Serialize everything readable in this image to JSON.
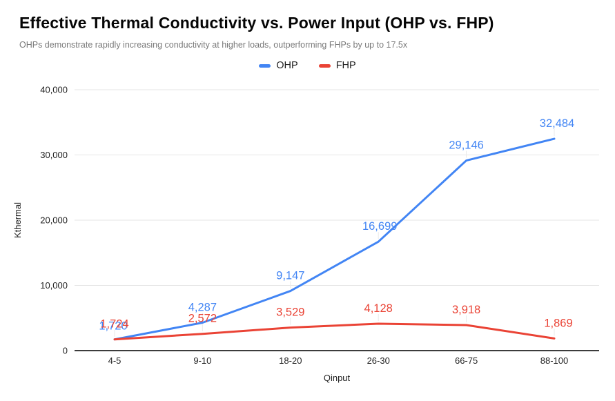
{
  "chart_data": {
    "type": "line",
    "title": "Effective Thermal Conductivity vs. Power Input (OHP vs. FHP)",
    "subtitle": "OHPs demonstrate rapidly increasing conductivity at higher loads, outperforming FHPs by up to 17.5x",
    "xlabel": "Qinput",
    "ylabel": "Kthermal",
    "categories": [
      "4-5",
      "9-10",
      "18-20",
      "26-30",
      "66-75",
      "88-100"
    ],
    "series": [
      {
        "name": "OHP",
        "color": "#4285F4",
        "values": [
          1720,
          4287,
          9147,
          16699,
          29146,
          32484
        ],
        "point_labels": [
          "1,720",
          "4,287",
          "9,147",
          "16,699",
          "29,146",
          "32,484"
        ],
        "label_offsets": [
          [
            -2,
            3
          ],
          [
            0,
            0
          ],
          [
            0,
            0
          ],
          [
            2,
            0
          ],
          [
            0,
            0
          ],
          [
            4,
            0
          ]
        ]
      },
      {
        "name": "FHP",
        "color": "#EA4335",
        "values": [
          1724,
          2572,
          3529,
          4128,
          3918,
          1869
        ],
        "point_labels": [
          "1,724",
          "2,572",
          "3,529",
          "4,128",
          "3,918",
          "1,869"
        ],
        "label_offsets": [
          [
            0,
            0
          ],
          [
            0,
            0
          ],
          [
            0,
            0
          ],
          [
            0,
            0
          ],
          [
            0,
            0
          ],
          [
            6,
            0
          ]
        ]
      }
    ],
    "ylim": [
      0,
      40000
    ],
    "yticks": [
      0,
      10000,
      20000,
      30000,
      40000
    ],
    "ytick_labels": [
      "0",
      "10,000",
      "20,000",
      "30,000",
      "40,000"
    ],
    "grid": "horizontal-only",
    "legend_position": "top-center"
  },
  "colors": {
    "ohp_blue": "#4285F4",
    "fhp_red": "#EA4335",
    "gridline": "#e4e4e4",
    "axis_line": "#3c3c3c",
    "tick_text": "#1f1f1f",
    "title_text": "#050505",
    "subtitle_text": "#7a7a7a",
    "leader_line": "#e9e9e9",
    "background": "#ffffff"
  }
}
